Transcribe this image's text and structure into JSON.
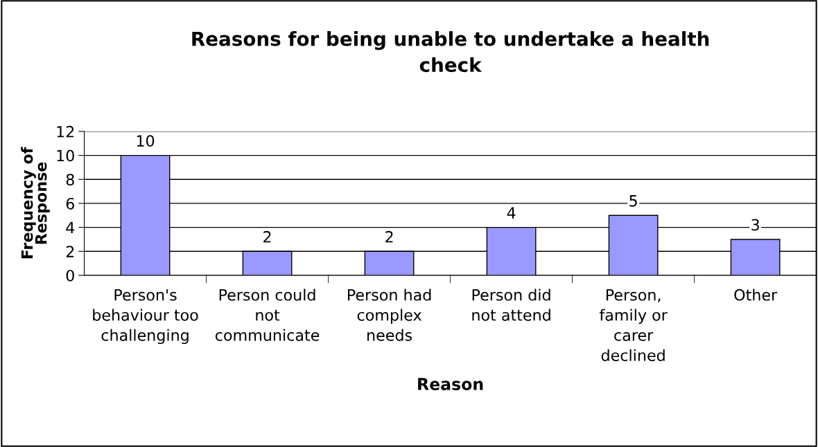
{
  "chart_data": {
    "type": "bar",
    "title": "Reasons for being unable to undertake a health\ncheck",
    "xlabel": "Reason",
    "ylabel": "Frequency of\nResponse",
    "categories": [
      "Person's\nbehaviour too\nchallenging",
      "Person could\nnot\ncommunicate",
      "Person had\ncomplex\nneeds",
      "Person did\nnot attend",
      "Person,\nfamily or\ncarer\ndeclined",
      "Other"
    ],
    "values": [
      10,
      2,
      2,
      4,
      5,
      3
    ],
    "color": "#9999ff",
    "ylim": [
      0,
      12
    ],
    "yticks": [
      0,
      2,
      4,
      6,
      8,
      10,
      12
    ],
    "grid": "y",
    "data_labels": true
  }
}
